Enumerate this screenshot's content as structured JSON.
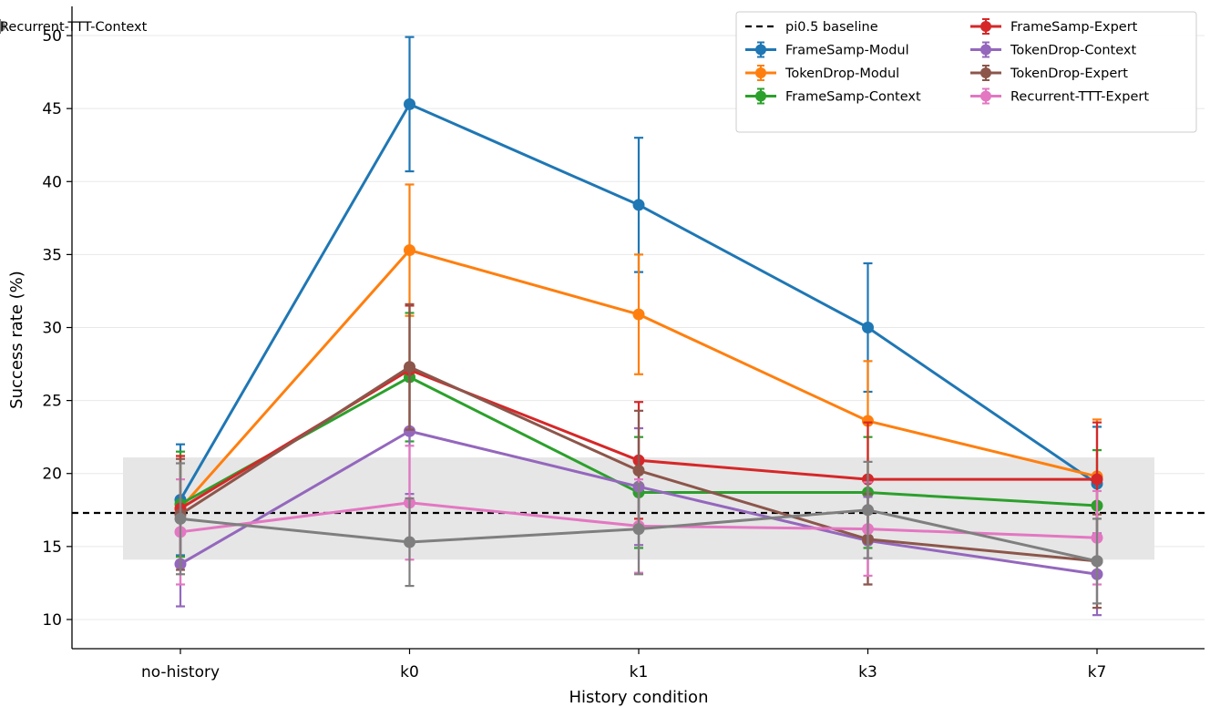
{
  "chart_data": {
    "type": "line",
    "title": "",
    "xlabel": "History condition",
    "ylabel": "Success rate (%)",
    "categories": [
      "no-history",
      "k0",
      "k1",
      "k3",
      "k7"
    ],
    "ylim": [
      8,
      52
    ],
    "yticks": [
      10,
      15,
      20,
      25,
      30,
      35,
      40,
      45,
      50
    ],
    "grid": "horizontal",
    "legend_position": "top-right",
    "legend_columns": 2,
    "baseline": {
      "name": "pi0.5 baseline",
      "value": 17.3,
      "band": [
        14.1,
        21.1
      ],
      "band_color": "#e6e6e6",
      "color": "#000000",
      "style": "dashed"
    },
    "series": [
      {
        "name": "FrameSamp-Modul",
        "color": "#1f77b4",
        "values": [
          18.2,
          45.3,
          38.4,
          30.0,
          19.3
        ],
        "errors": [
          3.8,
          4.6,
          4.6,
          4.4,
          3.9
        ]
      },
      {
        "name": "TokenDrop-Modul",
        "color": "#ff7f0e",
        "values": [
          17.6,
          35.3,
          30.9,
          23.6,
          19.8
        ],
        "errors": [
          3.6,
          4.5,
          4.1,
          4.1,
          3.9
        ]
      },
      {
        "name": "FrameSamp-Context",
        "color": "#2ca02c",
        "values": [
          17.9,
          26.6,
          18.7,
          18.7,
          17.8
        ],
        "errors": [
          3.6,
          4.4,
          3.8,
          3.8,
          3.8
        ]
      },
      {
        "name": "FrameSamp-Expert",
        "color": "#d62728",
        "values": [
          17.6,
          27.1,
          20.9,
          19.6,
          19.6
        ],
        "errors": [
          3.6,
          4.4,
          4.0,
          3.9,
          3.9
        ]
      },
      {
        "name": "TokenDrop-Context",
        "color": "#9467bd",
        "values": [
          13.8,
          22.9,
          19.1,
          15.4,
          13.1
        ],
        "errors": [
          2.9,
          4.3,
          4.0,
          3.0,
          2.8
        ]
      },
      {
        "name": "TokenDrop-Expert",
        "color": "#8c564b",
        "values": [
          17.2,
          27.3,
          20.2,
          15.5,
          14.0
        ],
        "errors": [
          3.8,
          4.3,
          4.1,
          3.1,
          3.2
        ]
      },
      {
        "name": "Recurrent-TTT-Expert",
        "color": "#e377c2",
        "values": [
          16.0,
          18.0,
          16.4,
          16.2,
          15.6
        ],
        "errors": [
          3.6,
          3.9,
          3.2,
          3.2,
          3.2
        ]
      },
      {
        "name": "Recurrent-TTT-Context",
        "color": "#7f7f7f",
        "values": [
          16.9,
          15.3,
          16.2,
          17.5,
          14.0
        ],
        "errors": [
          3.8,
          3.0,
          3.1,
          3.3,
          2.9
        ]
      }
    ]
  }
}
